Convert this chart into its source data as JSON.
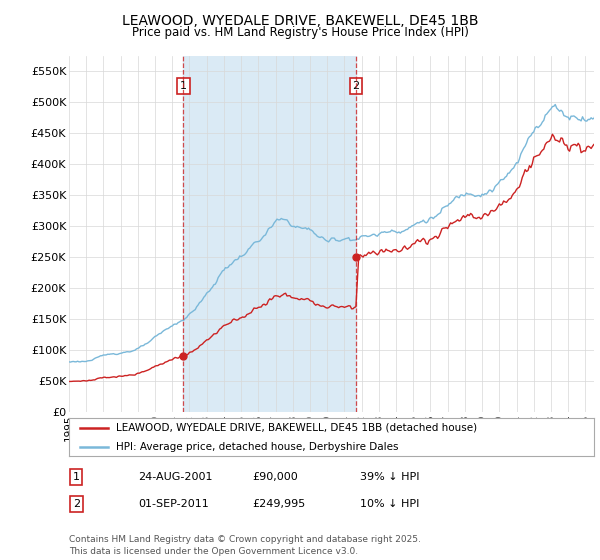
{
  "title": "LEAWOOD, WYEDALE DRIVE, BAKEWELL, DE45 1BB",
  "subtitle": "Price paid vs. HM Land Registry's House Price Index (HPI)",
  "ylim": [
    0,
    575000
  ],
  "yticks": [
    0,
    50000,
    100000,
    150000,
    200000,
    250000,
    300000,
    350000,
    400000,
    450000,
    500000,
    550000
  ],
  "ytick_labels": [
    "£0",
    "£50K",
    "£100K",
    "£150K",
    "£200K",
    "£250K",
    "£300K",
    "£350K",
    "£400K",
    "£450K",
    "£500K",
    "£550K"
  ],
  "xlim_start": 1995.0,
  "xlim_end": 2025.5,
  "hpi_color": "#7ab8d9",
  "hpi_fill_color": "#daeaf5",
  "price_color": "#cc2222",
  "marker1_x": 2001.64,
  "marker1_y": 90000,
  "marker2_x": 2011.67,
  "marker2_y": 249995,
  "legend_line1": "LEAWOOD, WYEDALE DRIVE, BAKEWELL, DE45 1BB (detached house)",
  "legend_line2": "HPI: Average price, detached house, Derbyshire Dales",
  "note1_label": "1",
  "note1_date": "24-AUG-2001",
  "note1_price": "£90,000",
  "note1_hpi": "39% ↓ HPI",
  "note2_label": "2",
  "note2_date": "01-SEP-2011",
  "note2_price": "£249,995",
  "note2_hpi": "10% ↓ HPI",
  "footer": "Contains HM Land Registry data © Crown copyright and database right 2025.\nThis data is licensed under the Open Government Licence v3.0.",
  "background_color": "#ffffff",
  "grid_color": "#d8d8d8"
}
